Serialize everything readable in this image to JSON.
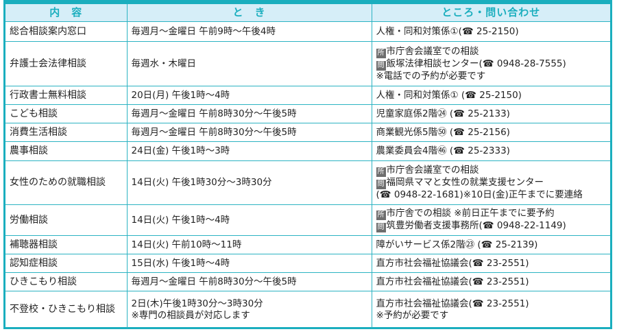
{
  "headers": [
    "内　容",
    "と　き",
    "ところ・問い合わせ"
  ],
  "badges": {
    "place": "所",
    "inquiry": "問"
  },
  "rows": [
    {
      "name": "総合相談案内窓口",
      "when": [
        "毎週月～金曜日 午前9時～午後4時"
      ],
      "where": [
        {
          "text": "人権・同和対策係①(☎ 25-2150)"
        }
      ]
    },
    {
      "name": "弁護士会法律相談",
      "when": [
        "毎週水・木曜日"
      ],
      "where": [
        {
          "badge": "place",
          "text": "市庁舎会議室での相談"
        },
        {
          "badge": "inquiry",
          "text": "飯塚法律相談センター(☎ 0948-28-7555)"
        },
        {
          "text": "※電話での予約が必要です"
        }
      ]
    },
    {
      "name": "行政書士無料相談",
      "when": [
        "20日(月) 午後1時～4時"
      ],
      "where": [
        {
          "text": "人権・同和対策係① (☎ 25-2150)"
        }
      ]
    },
    {
      "name": "こども相談",
      "when": [
        "毎週月～金曜日 午前8時30分～午後5時"
      ],
      "where": [
        {
          "text": "児童家庭係2階㉔ (☎ 25-2133)"
        }
      ]
    },
    {
      "name": "消費生活相談",
      "when": [
        "毎週月～金曜日 午前8時30分～午後5時"
      ],
      "where": [
        {
          "text": "商業観光係5階㊿ (☎ 25-2156)"
        }
      ]
    },
    {
      "name": "農事相談",
      "when": [
        "24日(金) 午後1時～3時"
      ],
      "where": [
        {
          "text": "農業委員会4階㊻ (☎ 25-2333)"
        }
      ]
    },
    {
      "name": "女性のための就職相談",
      "when": [
        "14日(火) 午後1時30分～3時30分"
      ],
      "where": [
        {
          "badge": "place",
          "text": "市庁舎会議室での相談"
        },
        {
          "badge": "inquiry",
          "text": "福岡県ママと女性の就業支援センター"
        },
        {
          "text": "(☎ 0948-22-1681)※10日(金)正午までに要連絡"
        }
      ]
    },
    {
      "name": "労働相談",
      "when": [
        "14日(火) 午後1時～4時"
      ],
      "where": [
        {
          "badge": "place",
          "text": "市庁舎での相談 ※前日正午までに要予約"
        },
        {
          "badge": "inquiry",
          "text": "筑豊労働者支援事務所(☎ 0948-22-1149)"
        }
      ]
    },
    {
      "name": "補聴器相談",
      "when": [
        "14日(火) 午前10時～11時"
      ],
      "where": [
        {
          "text": "障がいサービス係2階㉓ (☎ 25-2139)"
        }
      ]
    },
    {
      "name": "認知症相談",
      "when": [
        "15日(水) 午後1時～4時"
      ],
      "where": [
        {
          "text": "直方市社会福祉協議会(☎ 23-2551)"
        }
      ]
    },
    {
      "name": "ひきこもり相談",
      "when": [
        "毎週月～金曜日 午前8時30分～午後5時"
      ],
      "where": [
        {
          "text": "直方市社会福祉協議会(☎ 23-2551)"
        }
      ]
    },
    {
      "name": "不登校・ひきこもり相談",
      "when": [
        "2日(木)午後1時30分～3時30分",
        "※専門の相談員が対応します"
      ],
      "where": [
        {
          "text": "直方市社会福祉協議会(☎ 23-2551)"
        },
        {
          "text": "※予約が必要です"
        }
      ]
    }
  ],
  "colors": {
    "border": "#1aaebe",
    "header_bg": "#d6eef8",
    "header_text": "#1aaebe",
    "badge_bg": "#6e6e6e"
  }
}
